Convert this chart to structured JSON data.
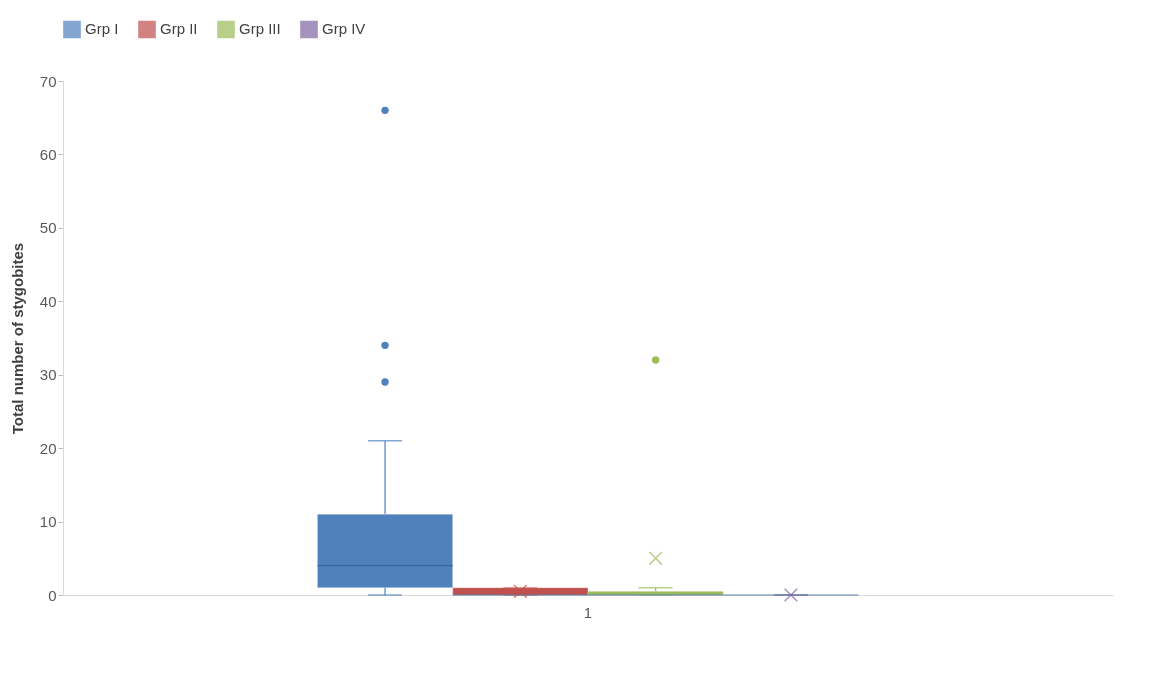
{
  "chart_data": {
    "type": "box",
    "ylabel": "Total number of stygobites",
    "categories": [
      "1"
    ],
    "ylim": [
      0,
      70
    ],
    "yticks": [
      0,
      10,
      20,
      30,
      40,
      50,
      60,
      70
    ],
    "grid": false,
    "legend": "top",
    "series": [
      {
        "name": "Grp I",
        "color": "#4f81bd",
        "boxes": [
          {
            "low": 0,
            "q1": 1,
            "median": 4,
            "q3": 11,
            "high": 21,
            "mean": 9.3,
            "outliers": [
              29,
              34,
              66
            ]
          }
        ]
      },
      {
        "name": "Grp II",
        "color": "#c0504d",
        "boxes": [
          {
            "low": 0,
            "q1": 0,
            "median": 0,
            "q3": 1,
            "high": 1,
            "mean": 0.5
          }
        ]
      },
      {
        "name": "Grp III",
        "color": "#9bbb59",
        "boxes": [
          {
            "low": 0,
            "q1": 0,
            "median": 0,
            "q3": 0.5,
            "high": 1,
            "mean": 5,
            "outliers": [
              32
            ]
          }
        ]
      },
      {
        "name": "Grp IV",
        "color": "#8064a2",
        "boxes": [
          {
            "low": 0,
            "q1": 0,
            "median": 0,
            "q3": 0,
            "high": 0,
            "mean": 0
          }
        ]
      }
    ]
  }
}
